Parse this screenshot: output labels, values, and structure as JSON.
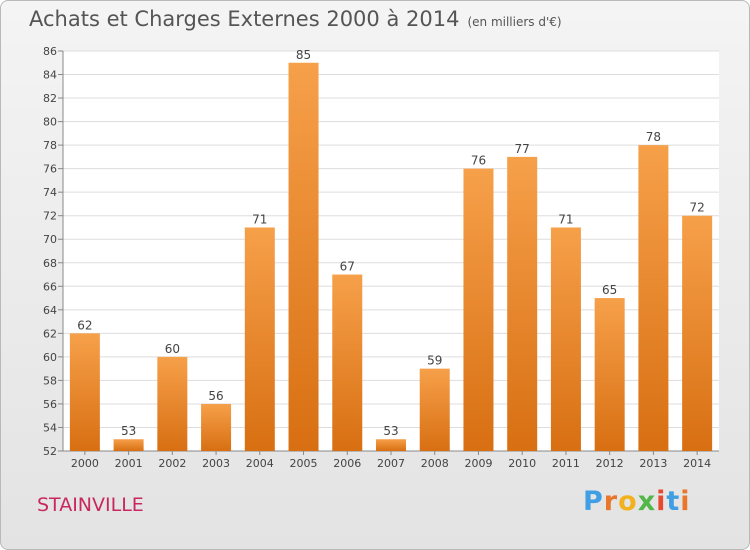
{
  "header": {
    "title": "Achats et Charges Externes 2000 à 2014",
    "unit": "(en milliers d'€)"
  },
  "footer": {
    "place": "STAINVILLE",
    "logo_text": "Proxiti"
  },
  "colors": {
    "bar_light": "#f6a04a",
    "bar_dark": "#d86f12",
    "place": "#c8285f",
    "logo_letters": [
      "#3f9ee4",
      "#e8762b",
      "#f2b21f",
      "#52b648",
      "#e84a2f",
      "#3f9ee4",
      "#e8762b"
    ]
  },
  "chart_data": {
    "type": "bar",
    "title": "Achats et Charges Externes 2000 à 2014",
    "subtitle": "(en milliers d'€)",
    "categories": [
      "2000",
      "2001",
      "2002",
      "2003",
      "2004",
      "2005",
      "2006",
      "2007",
      "2008",
      "2009",
      "2010",
      "2011",
      "2012",
      "2013",
      "2014"
    ],
    "values": [
      62,
      53,
      60,
      56,
      71,
      85,
      67,
      53,
      59,
      76,
      77,
      71,
      65,
      78,
      72
    ],
    "ylim": [
      52,
      86
    ],
    "yticks": [
      52,
      54,
      56,
      58,
      60,
      62,
      64,
      66,
      68,
      70,
      72,
      74,
      76,
      78,
      80,
      82,
      84,
      86
    ],
    "grid": true
  }
}
